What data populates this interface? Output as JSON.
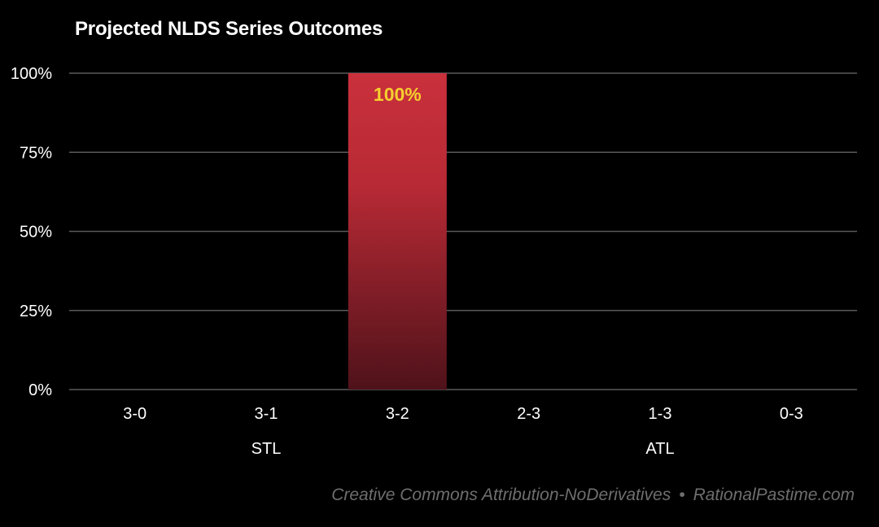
{
  "chart_data": {
    "type": "bar",
    "title": "Projected NLDS Series Outcomes",
    "categories": [
      "3-0",
      "3-1",
      "3-2",
      "2-3",
      "1-3",
      "0-3"
    ],
    "values": [
      0,
      0,
      100,
      0,
      0,
      0
    ],
    "value_labels": [
      "",
      "",
      "100%",
      "",
      "",
      ""
    ],
    "group_labels": [
      {
        "label": "STL",
        "category": "3-1"
      },
      {
        "label": "ATL",
        "category": "1-3"
      }
    ],
    "ylim": [
      0,
      100
    ],
    "yticks": [
      0,
      25,
      50,
      75,
      100
    ],
    "ytick_labels": [
      "0%",
      "25%",
      "50%",
      "75%",
      "100%"
    ],
    "xlabel": "",
    "ylabel": "",
    "grid": true,
    "colors": {
      "bar_top": "#c9303c",
      "bar_bottom": "#4f121a",
      "value_label": "#f5cf2e",
      "grid": "#5a5a5a",
      "text": "#ffffff"
    }
  },
  "footer": {
    "license": "Creative Commons Attribution-NoDerivatives",
    "separator": "•",
    "site": "RationalPastime.com"
  }
}
